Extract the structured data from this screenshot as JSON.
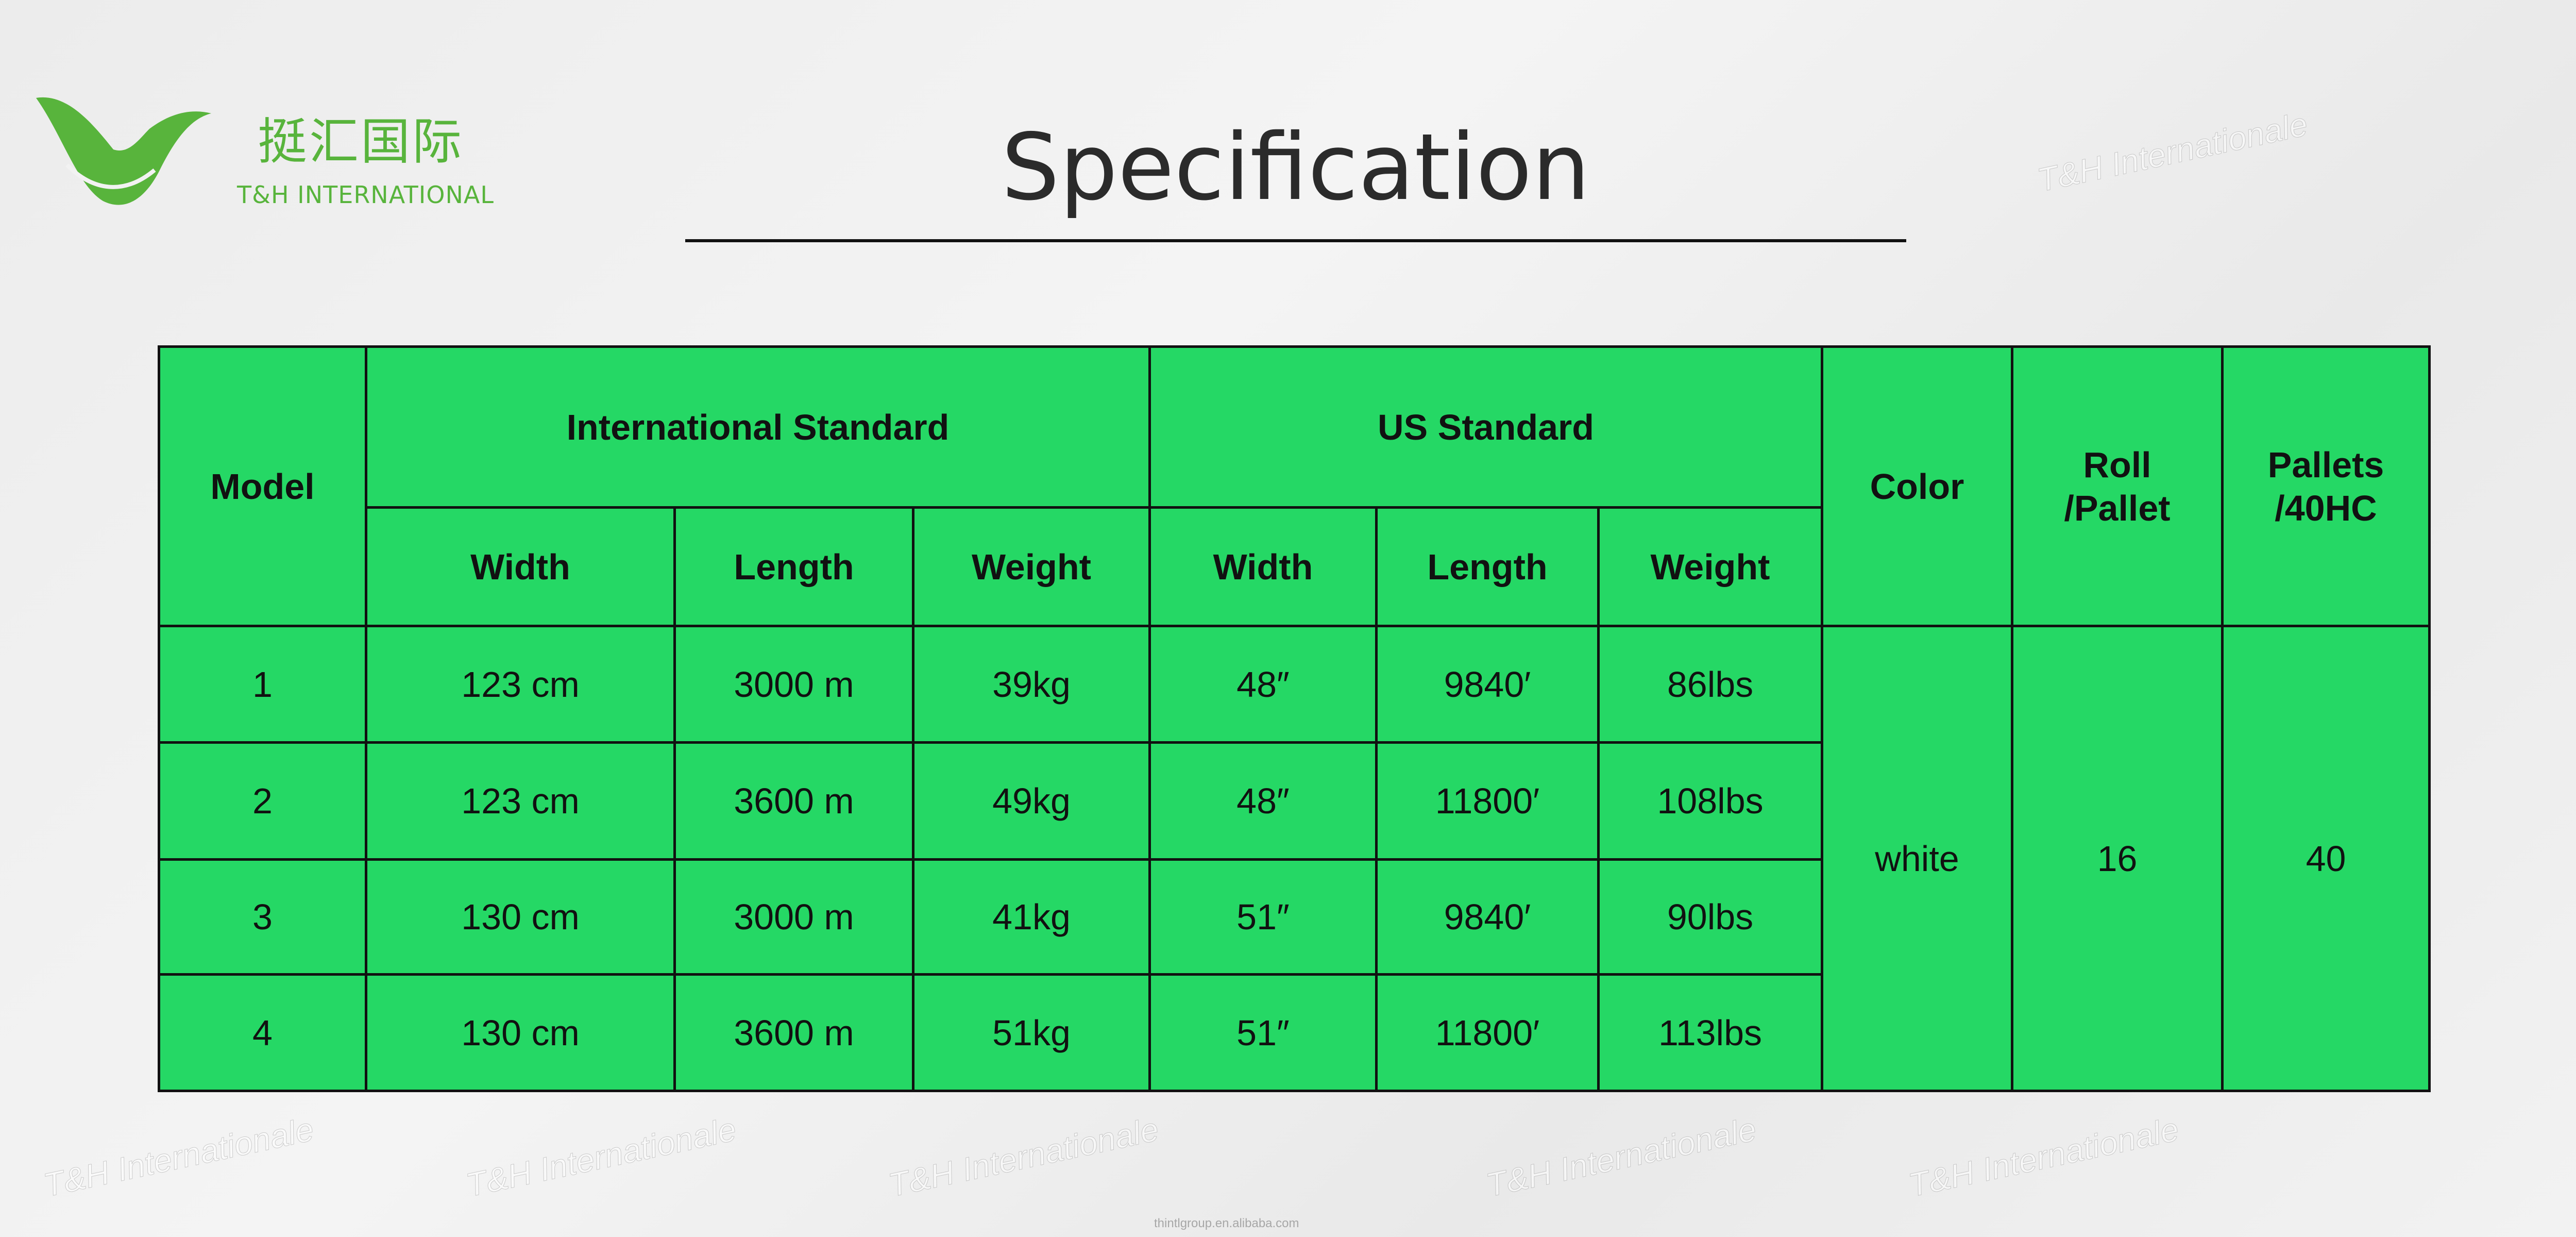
{
  "logo": {
    "cn": "挺汇国际",
    "en": "T&H INTERNATIONAL",
    "color": "#58b43c"
  },
  "title": "Specification",
  "watermark": "T&H Internationale",
  "watermark_url": "thintlgroup.en.alibaba.com",
  "table": {
    "bg_color": "#25d865",
    "headers": {
      "model": "Model",
      "intl": "International Standard",
      "us": "US Standard",
      "color": "Color",
      "roll": "Roll\n/Pallet",
      "pallets": "Pallets\n/40HC",
      "width": "Width",
      "length": "Length",
      "weight": "Weight"
    },
    "rows": [
      {
        "model": "1",
        "intl_width": "123 cm",
        "intl_length": "3000 m",
        "intl_weight": "39kg",
        "us_width": "48″",
        "us_length": "9840′",
        "us_weight": "86lbs"
      },
      {
        "model": "2",
        "intl_width": "123 cm",
        "intl_length": "3600 m",
        "intl_weight": "49kg",
        "us_width": "48″",
        "us_length": "11800′",
        "us_weight": "108lbs"
      },
      {
        "model": "3",
        "intl_width": "130 cm",
        "intl_length": "3000 m",
        "intl_weight": "41kg",
        "us_width": "51″",
        "us_length": "9840′",
        "us_weight": "90lbs"
      },
      {
        "model": "4",
        "intl_width": "130 cm",
        "intl_length": "3600 m",
        "intl_weight": "51kg",
        "us_width": "51″",
        "us_length": "11800′",
        "us_weight": "113lbs"
      }
    ],
    "shared": {
      "color": "white",
      "roll_per_pallet": "16",
      "pallets_per_40hc": "40"
    }
  }
}
